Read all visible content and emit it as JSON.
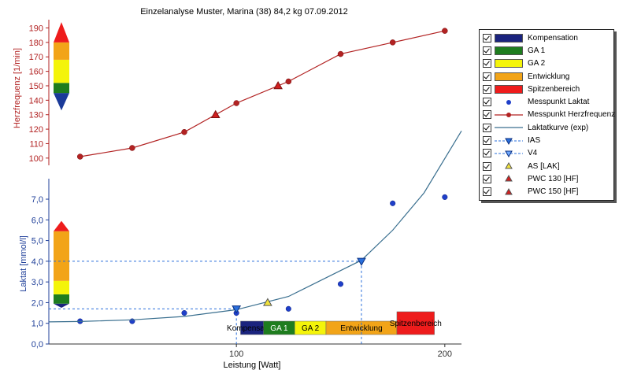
{
  "chart_data": {
    "title": "Einzelanalyse Muster, Marina (38) 84,2 kg 07.09.2012",
    "xlabel": "Leistung [Watt]",
    "ylabel_hr": "Herzfrequenz [1/min]",
    "ylabel_lactate": "Laktat [mmol/l]",
    "x_ticks": [
      "100",
      "200"
    ],
    "hr_ticks": [
      "100",
      "110",
      "120",
      "130",
      "140",
      "150",
      "160",
      "170",
      "180",
      "190"
    ],
    "lactate_ticks": [
      "0,0",
      "1,0",
      "2,0",
      "3,0",
      "4,0",
      "5,0",
      "6,0",
      "7,0"
    ],
    "xlim": [
      10,
      208
    ],
    "hr_ylim": [
      95,
      193
    ],
    "lactate_ylim": [
      0,
      7.8
    ],
    "grid": false,
    "legend_position": "right",
    "series": [
      {
        "name": "Messpunkt Herzfrequenz",
        "type": "line",
        "color": "#b22222",
        "x": [
          25,
          50,
          75,
          100,
          125,
          150,
          175,
          200
        ],
        "y": [
          101,
          107,
          118,
          138,
          153,
          172,
          180,
          188
        ]
      },
      {
        "name": "Messpunkt Laktat",
        "type": "scatter",
        "color": "#1f3fc9",
        "x": [
          25,
          50,
          75,
          100,
          125,
          150,
          175,
          200
        ],
        "y": [
          1.1,
          1.1,
          1.5,
          1.5,
          1.7,
          2.9,
          6.8,
          7.1
        ]
      },
      {
        "name": "Laktatkurve (exp)",
        "type": "line",
        "color": "#3a6f8f",
        "x": [
          10,
          25,
          50,
          75,
          100,
          125,
          150,
          160,
          175,
          190,
          208
        ],
        "y": [
          1.07,
          1.09,
          1.17,
          1.33,
          1.66,
          2.3,
          3.55,
          4.05,
          5.5,
          7.3,
          10.3
        ]
      }
    ],
    "markers": {
      "ias": {
        "name": "IAS",
        "x": 100,
        "y": 1.7,
        "color": "#2a6fdb"
      },
      "v4": {
        "name": "V4",
        "x": 160,
        "y": 4.0,
        "color": "#2a6fdb"
      },
      "as_lak": {
        "name": "AS [LAK]",
        "x": 115,
        "y": 2.0,
        "color": "#f0e23c"
      },
      "pwc130": {
        "name": "PWC 130 [HF]",
        "x": 90,
        "y": 130,
        "color": "#d02020"
      },
      "pwc150": {
        "name": "PWC 150 [HF]",
        "x": 120,
        "y": 150,
        "color": "#d02020"
      }
    },
    "zones": [
      {
        "name": "Kompensation",
        "color": "#1a237e",
        "text_color": "#000000",
        "x_start": 102,
        "x_end": 113
      },
      {
        "name": "GA 1",
        "color": "#1e7d1e",
        "text_color": "#ffffff",
        "x_start": 113,
        "x_end": 128
      },
      {
        "name": "GA 2",
        "color": "#f4f40a",
        "text_color": "#000000",
        "x_start": 128,
        "x_end": 143
      },
      {
        "name": "Entwicklung",
        "color": "#f2a418",
        "text_color": "#000000",
        "x_start": 143,
        "x_end": 177
      },
      {
        "name": "Spitzenbereich",
        "color": "#ee1c1c",
        "text_color": "#000000",
        "x_start": 177,
        "x_end": 195
      }
    ],
    "hr_zone_scale": [
      {
        "name": "Kompensation",
        "color": "#1a3a99",
        "from": 133,
        "to": 145
      },
      {
        "name": "GA 1",
        "color": "#1e7d1e",
        "from": 145,
        "to": 152
      },
      {
        "name": "GA 2",
        "color": "#f4f40a",
        "from": 152,
        "to": 168
      },
      {
        "name": "Entwicklung",
        "color": "#f2a418",
        "from": 168,
        "to": 180
      },
      {
        "name": "Spitzenbereich",
        "color": "#ee1c1c",
        "from": 180,
        "to": 194
      }
    ],
    "lactate_zone_scale": [
      {
        "name": "Kompensation",
        "color": "#1a237e",
        "from": 1.75,
        "to": 1.95
      },
      {
        "name": "GA 1",
        "color": "#1e7d1e",
        "from": 1.95,
        "to": 2.4
      },
      {
        "name": "GA 2",
        "color": "#f4f40a",
        "from": 2.4,
        "to": 3.05
      },
      {
        "name": "Entwicklung",
        "color": "#f2a418",
        "from": 3.05,
        "to": 5.45
      },
      {
        "name": "Spitzenbereich",
        "color": "#ee1c1c",
        "from": 5.45,
        "to": 5.95
      }
    ]
  },
  "legend": {
    "items": [
      {
        "label": "Kompensation",
        "kind": "box",
        "color": "#1a237e"
      },
      {
        "label": "GA 1",
        "kind": "box",
        "color": "#1e7d1e"
      },
      {
        "label": "GA 2",
        "kind": "box",
        "color": "#f4f40a"
      },
      {
        "label": "Entwicklung",
        "kind": "box",
        "color": "#f2a418"
      },
      {
        "label": "Spitzenbereich",
        "kind": "box",
        "color": "#ee1c1c"
      },
      {
        "label": "Messpunkt Laktat",
        "kind": "dot",
        "color": "#1f3fc9"
      },
      {
        "label": "Messpunkt Herzfrequenz",
        "kind": "line-dot",
        "color": "#b22222"
      },
      {
        "label": "Laktatkurve (exp)",
        "kind": "line",
        "color": "#3a6f8f"
      },
      {
        "label": "IAS",
        "kind": "dash-tri-down",
        "color": "#2a6fdb"
      },
      {
        "label": "V4",
        "kind": "dash-tri-down-light",
        "color": "#2a6fdb"
      },
      {
        "label": "AS [LAK]",
        "kind": "tri-up",
        "color": "#f0e23c"
      },
      {
        "label": "PWC 130 [HF]",
        "kind": "tri-up",
        "color": "#d02020"
      },
      {
        "label": "PWC 150 [HF]",
        "kind": "tri-up",
        "color": "#d02020"
      }
    ]
  }
}
